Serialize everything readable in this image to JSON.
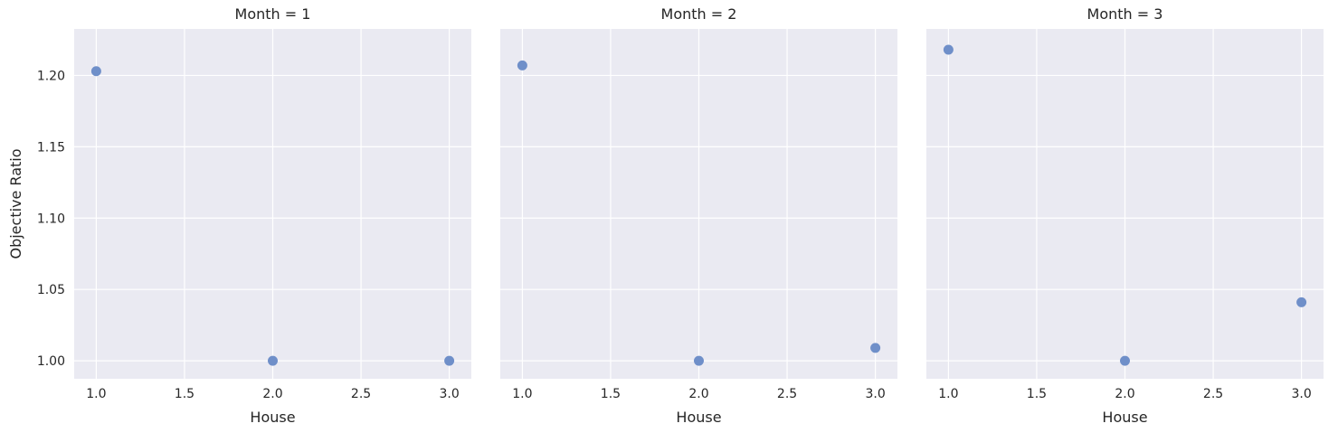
{
  "chart_data": {
    "type": "scatter",
    "facet_variable": "Month",
    "ylabel": "Objective Ratio",
    "xlabel": "House",
    "xlim": [
      0.875,
      3.125
    ],
    "ylim": [
      0.9874,
      1.2326
    ],
    "x_ticks": [
      1.0,
      1.5,
      2.0,
      2.5,
      3.0
    ],
    "y_ticks": [
      1.0,
      1.05,
      1.1,
      1.15,
      1.2
    ],
    "x_tick_labels": [
      "1.0",
      "1.5",
      "2.0",
      "2.5",
      "3.0"
    ],
    "y_tick_labels": [
      "1.00",
      "1.05",
      "1.10",
      "1.15",
      "1.20"
    ],
    "grid": true,
    "point_color": "#6f8fc9",
    "panel_background": "#eaeaf2",
    "panels": [
      {
        "title": "Month = 1",
        "x": [
          1.0,
          2.0,
          3.0
        ],
        "y": [
          1.203,
          1.0,
          1.0
        ]
      },
      {
        "title": "Month = 2",
        "x": [
          1.0,
          2.0,
          3.0
        ],
        "y": [
          1.207,
          1.0,
          1.009
        ]
      },
      {
        "title": "Month = 3",
        "x": [
          1.0,
          2.0,
          3.0
        ],
        "y": [
          1.218,
          1.0,
          1.041
        ]
      }
    ]
  }
}
